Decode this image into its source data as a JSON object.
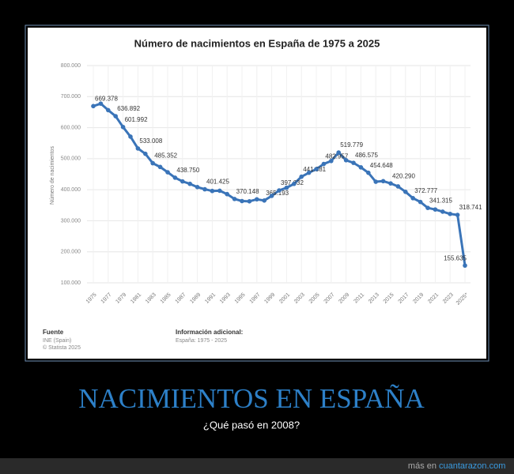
{
  "chart_data": {
    "type": "line",
    "title": "Número de nacimientos en España de 1975 a 2025",
    "y_label": "Número de nacimientos",
    "x": [
      1975,
      1976,
      1977,
      1978,
      1979,
      1980,
      1981,
      1982,
      1983,
      1984,
      1985,
      1986,
      1987,
      1988,
      1989,
      1990,
      1991,
      1992,
      1993,
      1994,
      1995,
      1996,
      1997,
      1998,
      1999,
      2000,
      2001,
      2002,
      2003,
      2004,
      2005,
      2006,
      2007,
      2008,
      2009,
      2010,
      2011,
      2012,
      2013,
      2014,
      2015,
      2016,
      2017,
      2018,
      2019,
      2020,
      2021,
      2022,
      2023,
      2024,
      2025
    ],
    "values": [
      669378,
      677456,
      656357,
      636892,
      601992,
      571018,
      533008,
      515706,
      485352,
      473281,
      456298,
      438750,
      426782,
      418919,
      408434,
      401425,
      395989,
      396747,
      385786,
      370148,
      363469,
      362626,
      369035,
      365193,
      380130,
      397632,
      406380,
      418846,
      441881,
      454591,
      466371,
      482957,
      492527,
      519779,
      494997,
      486575,
      471999,
      454648,
      425715,
      427595,
      420290,
      410583,
      393181,
      372777,
      360617,
      341315,
      336247,
      329251,
      322075,
      318741,
      155635
    ],
    "value_labels": [
      "669.378",
      null,
      null,
      "636.892",
      "601.992",
      null,
      "533.008",
      null,
      "485.352",
      null,
      null,
      "438.750",
      null,
      null,
      null,
      "401.425",
      null,
      null,
      null,
      "370.148",
      null,
      null,
      null,
      "365.193",
      null,
      "397.632",
      null,
      null,
      "441.881",
      null,
      null,
      "482.957",
      null,
      "519.779",
      null,
      "486.575",
      null,
      "454.648",
      null,
      null,
      "420.290",
      null,
      null,
      "372.777",
      null,
      "341.315",
      null,
      null,
      null,
      "318.741",
      "155.635"
    ],
    "color": "#3a74b8",
    "xlim": [
      1975,
      2025
    ],
    "xticks": [
      1975,
      1977,
      1979,
      1981,
      1983,
      1985,
      1987,
      1989,
      1991,
      1993,
      1995,
      1997,
      1999,
      2001,
      2003,
      2005,
      2007,
      2009,
      2011,
      2013,
      2015,
      2017,
      2019,
      2021,
      2023,
      {
        "value": 2025,
        "label": "2025*"
      }
    ],
    "ylim": [
      100000,
      800000
    ],
    "yticks": [
      {
        "value": 100000,
        "label": "100.000"
      },
      {
        "value": 200000,
        "label": "200.000"
      },
      {
        "value": 300000,
        "label": "300.000"
      },
      {
        "value": 400000,
        "label": "400.000"
      },
      {
        "value": 500000,
        "label": "500.000"
      },
      {
        "value": 600000,
        "label": "600.000"
      },
      {
        "value": 700000,
        "label": "700.000"
      },
      {
        "value": 800000,
        "label": "800.000"
      }
    ],
    "grid": true,
    "source_title": "Fuente",
    "source": "INE (Spain)",
    "copyright": "© Statista 2025",
    "info_title": "Información adicional:",
    "info": "España: 1975 - 2025"
  },
  "meme": {
    "title": "NACIMIENTOS EN ESPAÑA",
    "caption": "¿Qué pasó en 2008?",
    "footer_prefix": "más en",
    "footer_site": "cuantarazon.com"
  }
}
